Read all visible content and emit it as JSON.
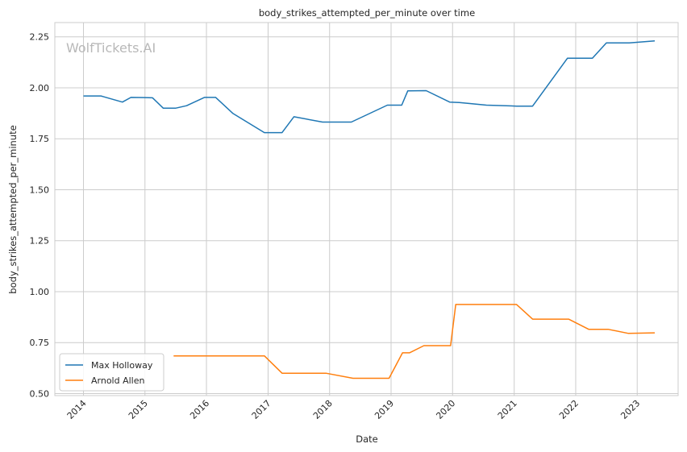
{
  "watermark": "WolfTickets.AI",
  "chart_data": {
    "type": "line",
    "title": "body_strikes_attempted_per_minute over time",
    "xlabel": "Date",
    "ylabel": "body_strikes_attempted_per_minute",
    "xlim": [
      "2013-07-15",
      "2023-09-01"
    ],
    "ylim": [
      0.49,
      2.32
    ],
    "x_ticks": [
      "2014",
      "2015",
      "2016",
      "2017",
      "2018",
      "2019",
      "2020",
      "2021",
      "2022",
      "2023"
    ],
    "y_ticks": [
      "0.50",
      "0.75",
      "1.00",
      "1.25",
      "1.50",
      "1.75",
      "2.00",
      "2.25"
    ],
    "grid": true,
    "legend_position": "bottom-left",
    "series": [
      {
        "name": "Max Holloway",
        "color": "#1f77b4",
        "points": [
          [
            "2014-01-01",
            1.96
          ],
          [
            "2014-04-15",
            1.96
          ],
          [
            "2014-08-20",
            1.93
          ],
          [
            "2014-10-10",
            1.953
          ],
          [
            "2015-01-01",
            1.952
          ],
          [
            "2015-02-15",
            1.951
          ],
          [
            "2015-04-20",
            1.9
          ],
          [
            "2015-07-01",
            1.9
          ],
          [
            "2015-09-05",
            1.912
          ],
          [
            "2015-12-20",
            1.953
          ],
          [
            "2016-02-25",
            1.953
          ],
          [
            "2016-06-05",
            1.875
          ],
          [
            "2016-12-10",
            1.78
          ],
          [
            "2017-03-25",
            1.78
          ],
          [
            "2017-06-03",
            1.858
          ],
          [
            "2017-11-20",
            1.832
          ],
          [
            "2018-05-10",
            1.832
          ],
          [
            "2018-12-10",
            1.915
          ],
          [
            "2019-03-05",
            1.915
          ],
          [
            "2019-04-10",
            1.985
          ],
          [
            "2019-07-28",
            1.986
          ],
          [
            "2019-12-15",
            1.93
          ],
          [
            "2020-02-10",
            1.928
          ],
          [
            "2020-07-20",
            1.915
          ],
          [
            "2021-01-16",
            1.91
          ],
          [
            "2021-04-20",
            1.91
          ],
          [
            "2021-11-13",
            2.145
          ],
          [
            "2022-04-10",
            2.145
          ],
          [
            "2022-07-02",
            2.22
          ],
          [
            "2022-11-15",
            2.22
          ],
          [
            "2023-04-15",
            2.23
          ]
        ]
      },
      {
        "name": "Arnold Allen",
        "color": "#ff7f0e",
        "points": [
          [
            "2015-06-20",
            0.685
          ],
          [
            "2016-12-10",
            0.685
          ],
          [
            "2017-03-25",
            0.6
          ],
          [
            "2017-12-10",
            0.6
          ],
          [
            "2018-05-20",
            0.575
          ],
          [
            "2018-12-20",
            0.575
          ],
          [
            "2019-03-10",
            0.7
          ],
          [
            "2019-04-20",
            0.7
          ],
          [
            "2019-07-15",
            0.735
          ],
          [
            "2019-12-20",
            0.735
          ],
          [
            "2020-01-20",
            0.937
          ],
          [
            "2021-01-15",
            0.937
          ],
          [
            "2021-04-20",
            0.865
          ],
          [
            "2021-11-20",
            0.865
          ],
          [
            "2022-03-20",
            0.815
          ],
          [
            "2022-07-15",
            0.815
          ],
          [
            "2022-11-10",
            0.795
          ],
          [
            "2023-04-15",
            0.798
          ]
        ]
      }
    ]
  }
}
